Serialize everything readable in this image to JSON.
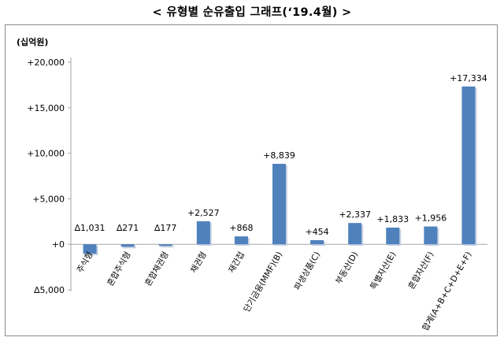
{
  "title": "< 유형별 순유출입 그래프(‘19.4월) >",
  "chart_data": {
    "type": "bar",
    "unit_label": "(십억원)",
    "categories": [
      "주식형",
      "혼합주식형",
      "혼합채권형",
      "채권형",
      "재간접",
      "단기금융(MMF)(B)",
      "파생상품(C)",
      "부동산(D)",
      "특별자산(E)",
      "혼합자산(F)",
      "합계(A+B+C+D+E+F)"
    ],
    "values": [
      -1031,
      -271,
      -177,
      2527,
      868,
      8839,
      454,
      2337,
      1833,
      1956,
      17334
    ],
    "data_labels": [
      "∆1,031",
      "∆271",
      "∆177",
      "+2,527",
      "+868",
      "+8,839",
      "+454",
      "+2,337",
      "+1,833",
      "+1,956",
      "+17,334"
    ],
    "y_ticks": [
      20000,
      15000,
      10000,
      5000,
      0,
      -5000
    ],
    "y_tick_labels": [
      "+20,000",
      "+15,000",
      "+10,000",
      "+5,000",
      "+0",
      "∆5,000"
    ],
    "ylim": [
      -5000,
      20000
    ],
    "grid": false,
    "legend": "none",
    "bar_color": "#4f81bd"
  }
}
